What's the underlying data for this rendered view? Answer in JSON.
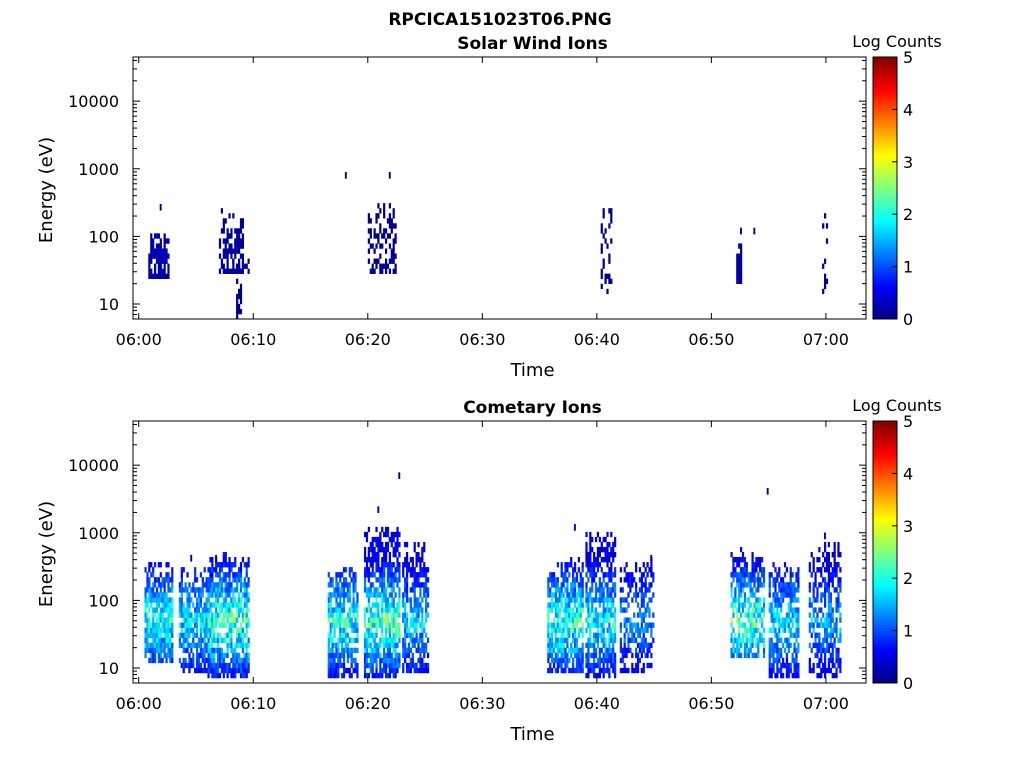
{
  "figure_title": "RPCICA151023T06.PNG",
  "colors": {
    "colormap": [
      "#00007f",
      "#0000ff",
      "#007fff",
      "#00ffff",
      "#7fff7f",
      "#ffff00",
      "#ff7f00",
      "#ff0000",
      "#7f0000"
    ],
    "axes": "#000000"
  },
  "chart_data": [
    {
      "type": "heatmap",
      "title": "Solar Wind Ions",
      "xlabel": "Time",
      "ylabel": "Energy (eV)",
      "yscale": "log",
      "xlim": [
        "05:59:30",
        "07:03:30"
      ],
      "ylim": [
        6,
        45000
      ],
      "xticks": [
        "06:00",
        "06:10",
        "06:20",
        "06:30",
        "06:40",
        "06:50",
        "07:00"
      ],
      "yticks": [
        10,
        100,
        1000,
        10000
      ],
      "ytick_labels": [
        "10",
        "100",
        "1000",
        "10000"
      ],
      "colorbar": {
        "label": "Log Counts",
        "min": 0,
        "max": 5,
        "ticks": [
          "0",
          "1",
          "2",
          "3",
          "4",
          "5"
        ]
      },
      "bursts": [
        {
          "start": "06:00:50",
          "end": "06:02:40",
          "emin": 25,
          "emax": 110,
          "level": 0.2,
          "density": 0.85,
          "seed": 11
        },
        {
          "start": "06:07:00",
          "end": "06:09:10",
          "emin": 30,
          "emax": 260,
          "level": 0.15,
          "density": 0.55,
          "seed": 12
        },
        {
          "start": "06:08:00",
          "end": "06:09:50",
          "emin": 30,
          "emax": 45,
          "level": 0.15,
          "density": 0.9,
          "seed": 13
        },
        {
          "start": "06:08:30",
          "end": "06:09:00",
          "emin": 6,
          "emax": 30,
          "level": 0.15,
          "density": 0.7,
          "seed": 14
        },
        {
          "start": "06:20:00",
          "end": "06:22:30",
          "emin": 30,
          "emax": 300,
          "level": 0.1,
          "density": 0.4,
          "seed": 15
        },
        {
          "start": "06:40:20",
          "end": "06:41:20",
          "emin": 15,
          "emax": 350,
          "level": 0.1,
          "density": 0.35,
          "seed": 16
        },
        {
          "start": "06:52:10",
          "end": "06:52:40",
          "emin": 22,
          "emax": 90,
          "level": 0.15,
          "density": 0.85,
          "seed": 17
        },
        {
          "start": "06:59:40",
          "end": "07:00:10",
          "emin": 12,
          "emax": 200,
          "level": 0.1,
          "density": 0.25,
          "seed": 18
        }
      ],
      "points": [
        {
          "time": "06:01:50",
          "energy": 270,
          "level": 0.1
        },
        {
          "time": "06:18:00",
          "energy": 800,
          "level": 0.1
        },
        {
          "time": "06:21:50",
          "energy": 800,
          "level": 0.1
        },
        {
          "time": "06:53:40",
          "energy": 120,
          "level": 0.1
        },
        {
          "time": "06:52:30",
          "energy": 120,
          "level": 0.1
        }
      ]
    },
    {
      "type": "heatmap",
      "title": "Cometary Ions",
      "xlabel": "Time",
      "ylabel": "Energy (eV)",
      "yscale": "log",
      "xlim": [
        "05:59:30",
        "07:03:30"
      ],
      "ylim": [
        6,
        45000
      ],
      "xticks": [
        "06:00",
        "06:10",
        "06:20",
        "06:30",
        "06:40",
        "06:50",
        "07:00"
      ],
      "yticks": [
        10,
        100,
        1000,
        10000
      ],
      "ytick_labels": [
        "10",
        "100",
        "1000",
        "10000"
      ],
      "colorbar": {
        "label": "Log Counts",
        "min": 0,
        "max": 5,
        "ticks": [
          "0",
          "1",
          "2",
          "3",
          "4",
          "5"
        ]
      },
      "bursts": [
        {
          "start": "06:00:30",
          "end": "06:03:00",
          "emin": 12,
          "emax": 350,
          "level": 1.6,
          "density": 0.8,
          "seed": 21
        },
        {
          "start": "06:03:30",
          "end": "06:06:30",
          "emin": 10,
          "emax": 300,
          "level": 1.4,
          "density": 0.7,
          "seed": 22
        },
        {
          "start": "06:06:00",
          "end": "06:09:40",
          "emin": 8,
          "emax": 500,
          "level": 1.8,
          "density": 0.72,
          "seed": 23
        },
        {
          "start": "06:16:30",
          "end": "06:19:10",
          "emin": 8,
          "emax": 300,
          "level": 1.6,
          "density": 0.72,
          "seed": 24
        },
        {
          "start": "06:19:40",
          "end": "06:22:50",
          "emin": 8,
          "emax": 1200,
          "level": 1.8,
          "density": 0.7,
          "seed": 25
        },
        {
          "start": "06:23:00",
          "end": "06:25:20",
          "emin": 10,
          "emax": 700,
          "level": 1.3,
          "density": 0.65,
          "seed": 26
        },
        {
          "start": "06:35:40",
          "end": "06:38:50",
          "emin": 10,
          "emax": 400,
          "level": 1.7,
          "density": 0.72,
          "seed": 27
        },
        {
          "start": "06:39:00",
          "end": "06:41:40",
          "emin": 8,
          "emax": 900,
          "level": 1.5,
          "density": 0.7,
          "seed": 28
        },
        {
          "start": "06:42:00",
          "end": "06:45:00",
          "emin": 10,
          "emax": 400,
          "level": 1.1,
          "density": 0.55,
          "seed": 29
        },
        {
          "start": "06:51:40",
          "end": "06:54:40",
          "emin": 15,
          "emax": 600,
          "level": 1.8,
          "density": 0.65,
          "seed": 30
        },
        {
          "start": "06:55:00",
          "end": "06:57:40",
          "emin": 8,
          "emax": 350,
          "level": 1.4,
          "density": 0.65,
          "seed": 31
        },
        {
          "start": "06:58:30",
          "end": "07:01:20",
          "emin": 8,
          "emax": 700,
          "level": 1.2,
          "density": 0.6,
          "seed": 32
        }
      ],
      "points": [
        {
          "time": "06:22:40",
          "energy": 7000,
          "level": 0.1
        },
        {
          "time": "06:20:50",
          "energy": 2200,
          "level": 0.3
        },
        {
          "time": "06:38:00",
          "energy": 1200,
          "level": 0.3
        },
        {
          "time": "06:54:50",
          "energy": 4100,
          "level": 0.1
        },
        {
          "time": "06:59:50",
          "energy": 900,
          "level": 0.3
        },
        {
          "time": "06:04:30",
          "energy": 420,
          "level": 0.3
        },
        {
          "time": "06:06:40",
          "energy": 420,
          "level": 0.3
        },
        {
          "time": "06:44:40",
          "energy": 420,
          "level": 0.3
        }
      ]
    }
  ]
}
